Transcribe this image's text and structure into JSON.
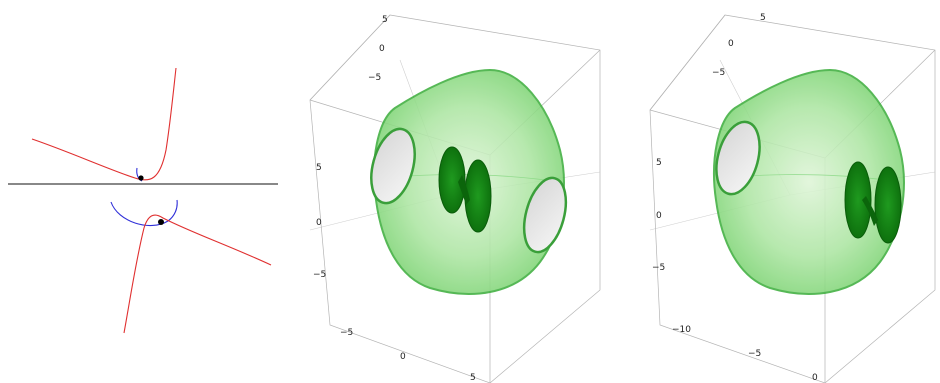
{
  "figure": {
    "panels": [
      {
        "id": "curves-diagram",
        "kind": "2d-sketch",
        "colors": {
          "curve": "#e03030",
          "circle": "#3030d8",
          "line": "#111111",
          "dot": "#000000"
        }
      },
      {
        "id": "surface-plot-1",
        "kind": "3d-surface",
        "surface_color": "#4cc44c",
        "ticks": {
          "top_axis": [
            "5",
            "0",
            "−5"
          ],
          "left_axis": [
            "5",
            "0",
            "−5"
          ],
          "bottom_axis": [
            "−5",
            "0",
            "5"
          ]
        }
      },
      {
        "id": "surface-plot-2",
        "kind": "3d-surface",
        "surface_color": "#4cc44c",
        "ticks": {
          "top_axis": [
            "5",
            "0",
            "−5"
          ],
          "left_axis": [
            "5",
            "0",
            "−5"
          ],
          "bottom_axis": [
            "−10",
            "−5",
            "0"
          ]
        }
      }
    ]
  }
}
